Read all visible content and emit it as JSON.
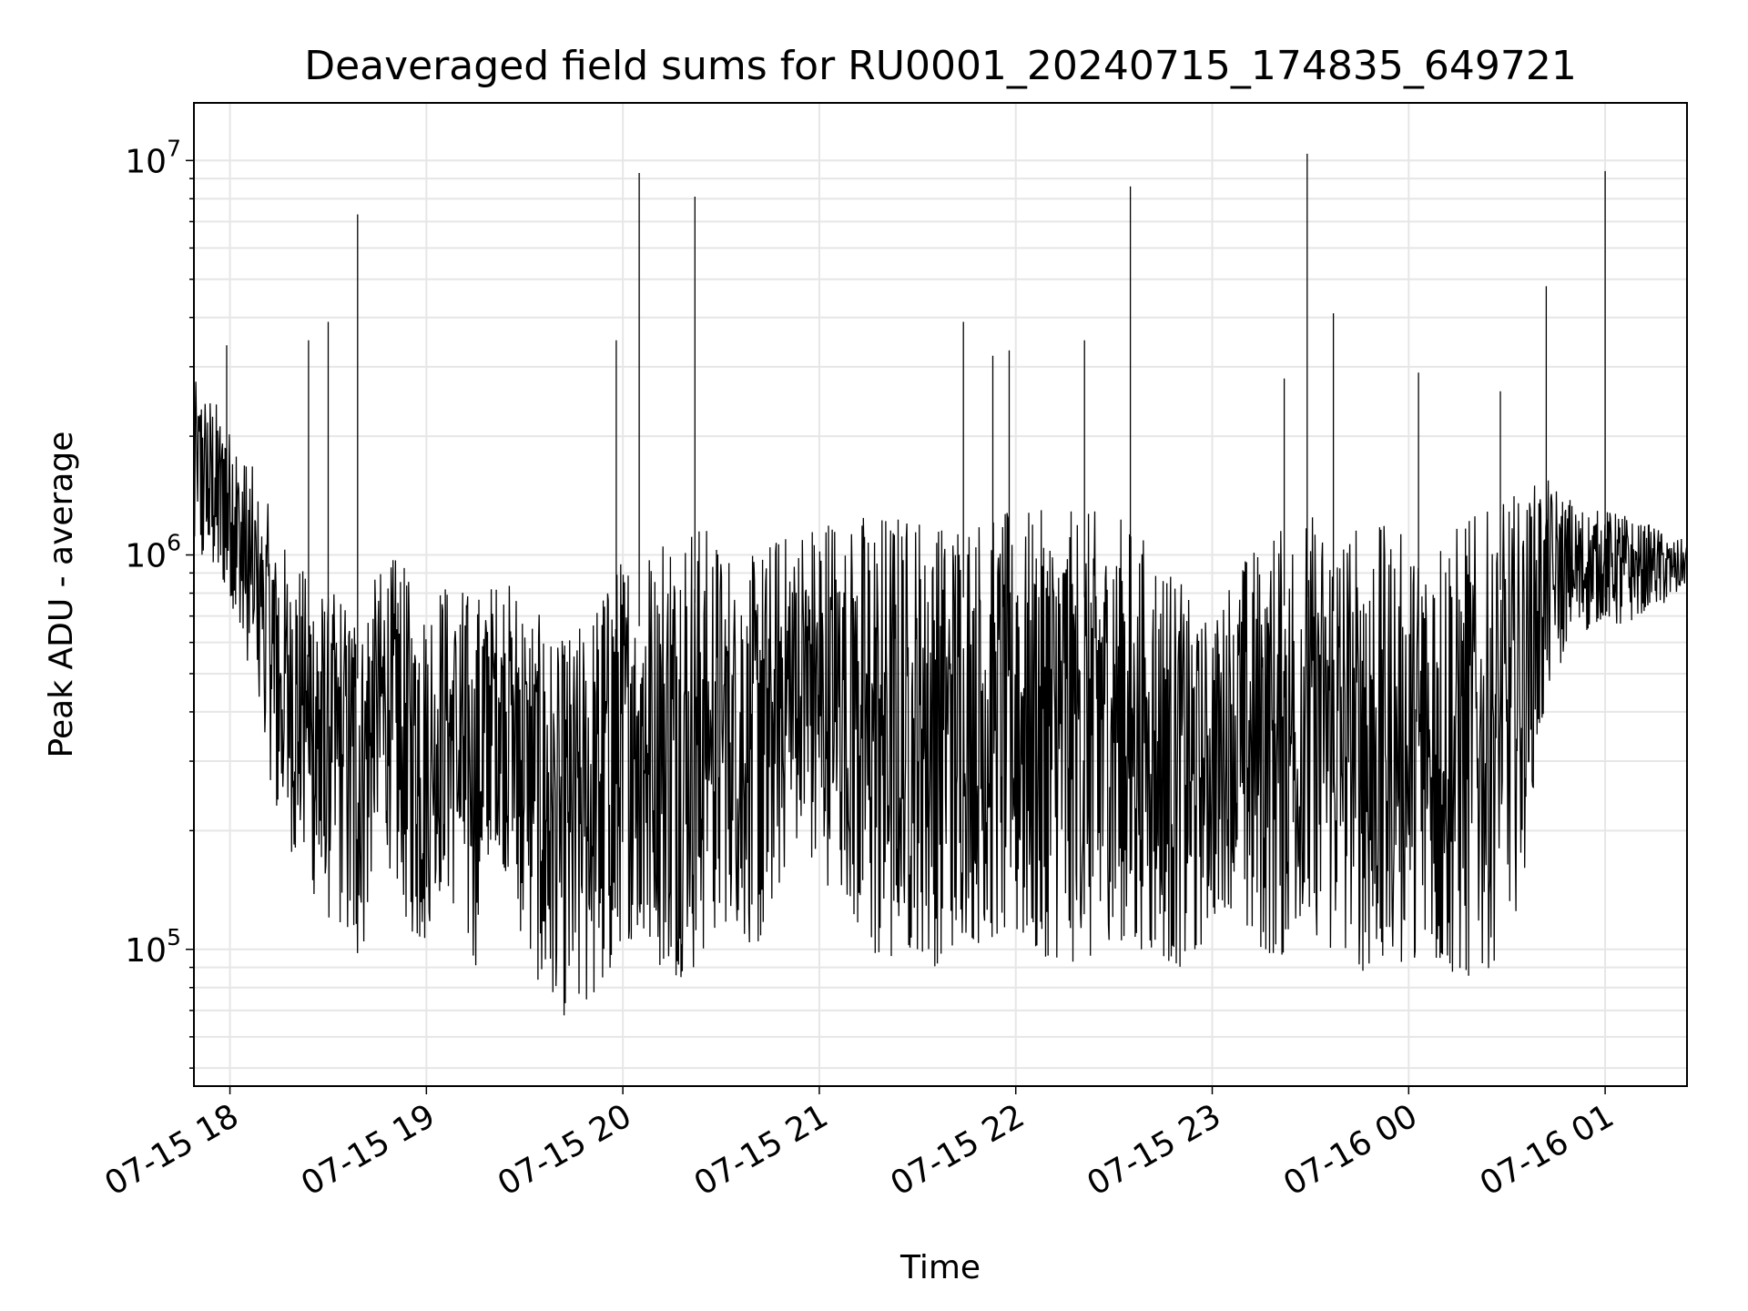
{
  "chart_data": {
    "type": "line",
    "title": "Deaveraged field sums for RU0001_20240715_174835_649721",
    "xlabel": "Time",
    "ylabel": "Peak ADU - average",
    "yscale": "log",
    "xlim": [
      "2024-07-15 17:49",
      "2024-07-16 01:25"
    ],
    "ylim": [
      45000,
      14000000
    ],
    "x_ticks": [
      "07-15 18",
      "07-15 19",
      "07-15 20",
      "07-15 21",
      "07-15 22",
      "07-15 23",
      "07-16 00",
      "07-16 01"
    ],
    "y_ticks": [
      {
        "base": "10",
        "exp": "5"
      },
      {
        "base": "10",
        "exp": "6"
      },
      {
        "base": "10",
        "exp": "7"
      }
    ],
    "grid": true,
    "line_color": "#000000",
    "series": [
      {
        "x": [
          "2024-07-15 17:49",
          "2024-07-15 17:55",
          "2024-07-15 18:00",
          "2024-07-15 18:05",
          "2024-07-15 18:10",
          "2024-07-15 18:15",
          "2024-07-15 18:20",
          "2024-07-15 18:25",
          "2024-07-15 18:30",
          "2024-07-15 18:35",
          "2024-07-15 18:40",
          "2024-07-15 18:45",
          "2024-07-15 18:50",
          "2024-07-15 18:55",
          "2024-07-15 19:00",
          "2024-07-15 19:05",
          "2024-07-15 19:10",
          "2024-07-15 19:15",
          "2024-07-15 19:20",
          "2024-07-15 19:25",
          "2024-07-15 19:30",
          "2024-07-15 19:35",
          "2024-07-15 19:40",
          "2024-07-15 19:45",
          "2024-07-15 19:50",
          "2024-07-15 19:55",
          "2024-07-15 20:00",
          "2024-07-15 20:05",
          "2024-07-15 20:10",
          "2024-07-15 20:15",
          "2024-07-15 20:20",
          "2024-07-15 20:25",
          "2024-07-15 20:30",
          "2024-07-15 20:35",
          "2024-07-15 20:40",
          "2024-07-15 20:45",
          "2024-07-15 20:50",
          "2024-07-15 20:55",
          "2024-07-15 21:00",
          "2024-07-15 21:05",
          "2024-07-15 21:10",
          "2024-07-15 21:15",
          "2024-07-15 21:20",
          "2024-07-15 21:25",
          "2024-07-15 21:30",
          "2024-07-15 21:35",
          "2024-07-15 21:40",
          "2024-07-15 21:45",
          "2024-07-15 21:50",
          "2024-07-15 21:55",
          "2024-07-15 22:00",
          "2024-07-15 22:05",
          "2024-07-15 22:10",
          "2024-07-15 22:15",
          "2024-07-15 22:20",
          "2024-07-15 22:25",
          "2024-07-15 22:30",
          "2024-07-15 22:35",
          "2024-07-15 22:40",
          "2024-07-15 22:45",
          "2024-07-15 22:50",
          "2024-07-15 22:55",
          "2024-07-15 23:00",
          "2024-07-15 23:05",
          "2024-07-15 23:10",
          "2024-07-15 23:15",
          "2024-07-15 23:20",
          "2024-07-15 23:25",
          "2024-07-15 23:30",
          "2024-07-15 23:35",
          "2024-07-15 23:40",
          "2024-07-15 23:45",
          "2024-07-15 23:50",
          "2024-07-15 23:55",
          "2024-07-16 00:00",
          "2024-07-16 00:05",
          "2024-07-16 00:10",
          "2024-07-16 00:15",
          "2024-07-16 00:20",
          "2024-07-16 00:25",
          "2024-07-16 00:30",
          "2024-07-16 00:35",
          "2024-07-16 00:40",
          "2024-07-16 00:45",
          "2024-07-16 00:50",
          "2024-07-16 00:55",
          "2024-07-16 01:00",
          "2024-07-16 01:05",
          "2024-07-16 01:10",
          "2024-07-16 01:15",
          "2024-07-16 01:20",
          "2024-07-16 01:25"
        ],
        "y_low": [
          950000,
          900000,
          800000,
          500000,
          350000,
          200000,
          170000,
          140000,
          120000,
          110000,
          90000,
          200000,
          150000,
          110000,
          100000,
          150000,
          120000,
          90000,
          200000,
          150000,
          100000,
          80000,
          70000,
          65000,
          75000,
          80000,
          110000,
          100000,
          90000,
          85000,
          85000,
          100000,
          120000,
          110000,
          100000,
          110000,
          170000,
          200000,
          140000,
          150000,
          120000,
          100000,
          90000,
          95000,
          100000,
          90000,
          100000,
          110000,
          100000,
          110000,
          105000,
          100000,
          95000,
          95000,
          90000,
          95000,
          110000,
          100000,
          100000,
          95000,
          90000,
          95000,
          120000,
          130000,
          110000,
          100000,
          95000,
          100000,
          105000,
          100000,
          95000,
          90000,
          80000,
          85000,
          90000,
          90000,
          90000,
          85000,
          85000,
          90000,
          100000,
          150000,
          350000,
          500000,
          600000,
          650000,
          700000,
          650000,
          700000,
          750000,
          750000,
          800000
        ],
        "y_high": [
          2800000,
          2500000,
          2200000,
          1800000,
          1500000,
          1100000,
          1000000,
          900000,
          800000,
          850000,
          800000,
          900000,
          1000000,
          900000,
          800000,
          900000,
          850000,
          800000,
          850000,
          900000,
          800000,
          700000,
          600000,
          650000,
          700000,
          900000,
          1000000,
          1100000,
          1200000,
          1300000,
          1300000,
          1200000,
          1100000,
          1000000,
          1000000,
          1100000,
          1200000,
          1200000,
          1300000,
          1300000,
          1300000,
          1300000,
          1300000,
          1300000,
          1300000,
          1300000,
          1300000,
          1300000,
          1300000,
          1300000,
          1300000,
          1300000,
          1300000,
          1300000,
          1300000,
          1300000,
          1300000,
          1200000,
          1100000,
          1000000,
          900000,
          700000,
          700000,
          900000,
          1000000,
          1100000,
          1200000,
          1300000,
          1300000,
          1200000,
          1200000,
          1200000,
          1200000,
          1200000,
          1100000,
          1100000,
          1200000,
          1200000,
          1300000,
          1300000,
          1400000,
          1500000,
          1600000,
          1500000,
          1400000,
          1300000,
          1300000,
          1300000,
          1200000,
          1200000,
          1100000,
          1100000
        ],
        "spikes": [
          {
            "x": "2024-07-15 18:39",
            "y": 7300000
          },
          {
            "x": "2024-07-15 18:30",
            "y": 3900000
          },
          {
            "x": "2024-07-15 18:24",
            "y": 3500000
          },
          {
            "x": "2024-07-15 17:59",
            "y": 3400000
          },
          {
            "x": "2024-07-15 19:58",
            "y": 3500000
          },
          {
            "x": "2024-07-15 20:05",
            "y": 9300000
          },
          {
            "x": "2024-07-15 20:22",
            "y": 8100000
          },
          {
            "x": "2024-07-15 21:44",
            "y": 3900000
          },
          {
            "x": "2024-07-15 21:53",
            "y": 3200000
          },
          {
            "x": "2024-07-15 21:58",
            "y": 3300000
          },
          {
            "x": "2024-07-15 22:21",
            "y": 3500000
          },
          {
            "x": "2024-07-15 22:35",
            "y": 8600000
          },
          {
            "x": "2024-07-15 23:22",
            "y": 2800000
          },
          {
            "x": "2024-07-15 23:29",
            "y": 10400000
          },
          {
            "x": "2024-07-15 23:37",
            "y": 4100000
          },
          {
            "x": "2024-07-16 00:03",
            "y": 2900000
          },
          {
            "x": "2024-07-16 00:28",
            "y": 2600000
          },
          {
            "x": "2024-07-16 00:42",
            "y": 4800000
          },
          {
            "x": "2024-07-16 01:00",
            "y": 9400000
          }
        ]
      }
    ]
  }
}
